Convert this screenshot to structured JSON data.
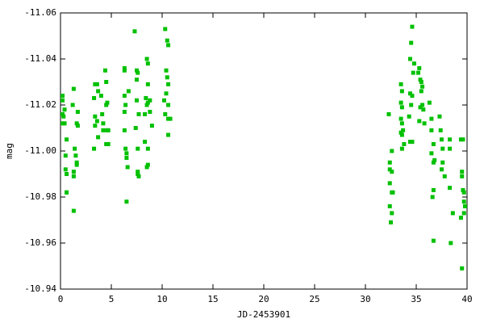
{
  "chart_data": {
    "type": "scatter",
    "x_label": "JD-2453901",
    "y_label": "mag",
    "color": "#00c000",
    "xlim": [
      0,
      40
    ],
    "xticks": [
      0,
      5,
      10,
      15,
      20,
      25,
      30,
      35,
      40
    ],
    "ylim": [
      -10.94,
      -11.06
    ],
    "yticks": [
      -10.94,
      -10.96,
      -10.98,
      {
        "value": -11,
        "label": "-11.00"
      },
      -11.02,
      -11.04,
      -11.06
    ],
    "x": [
      0.2,
      0.2,
      0.4,
      0.2,
      0.3,
      0.4,
      0.2,
      0.6,
      0.5,
      0.5,
      0.6,
      0.6,
      0.6,
      1.2,
      1.3,
      1.7,
      1.6,
      1.7,
      1.4,
      1.5,
      1.6,
      1.3,
      1.3,
      1.3,
      1.6,
      3.3,
      3.4,
      3.6,
      3.4,
      3.4,
      3.3,
      3.7,
      3.6,
      3.7,
      4.0,
      4.1,
      4.2,
      4.2,
      4.4,
      4.5,
      4.5,
      4.6,
      4.6,
      4.7,
      4.5,
      4.7,
      6.3,
      6.3,
      6.3,
      6.4,
      6.3,
      6.3,
      6.4,
      6.5,
      6.5,
      6.6,
      6.5,
      6.7,
      7.3,
      7.5,
      7.6,
      7.5,
      7.5,
      7.7,
      7.4,
      7.6,
      7.6,
      7.7,
      7.6,
      8.5,
      8.6,
      8.4,
      8.5,
      8.6,
      8.8,
      8.3,
      8.8,
      9.0,
      8.3,
      8.6,
      8.6,
      8.5,
      8.6,
      10.3,
      10.5,
      10.6,
      10.4,
      10.5,
      10.6,
      10.4,
      10.2,
      10.6,
      10.3,
      10.6,
      10.8,
      10.6,
      32.3,
      32.4,
      32.4,
      32.6,
      32.4,
      32.6,
      32.7,
      32.4,
      32.6,
      32.5,
      32.6,
      33.5,
      33.6,
      33.5,
      33.6,
      33.5,
      33.6,
      33.7,
      33.6,
      33.8,
      33.6,
      33.5,
      34.4,
      34.5,
      34.6,
      34.4,
      34.5,
      34.7,
      34.8,
      34.4,
      34.6,
      34.3,
      34.6,
      35.2,
      35.3,
      35.4,
      35.5,
      35.6,
      35.5,
      35.4,
      35.7,
      35.3,
      35.8,
      35.6,
      36.3,
      36.5,
      36.5,
      36.7,
      36.5,
      36.7,
      36.6,
      36.7,
      36.8,
      36.7,
      37.3,
      37.4,
      37.5,
      37.6,
      37.6,
      37.8,
      37.5,
      38.3,
      38.3,
      38.3,
      38.6,
      38.4,
      39.4,
      39.6,
      39.5,
      39.5,
      39.6,
      39.7,
      39.7,
      39.8,
      39.4,
      39.7,
      39.5
    ],
    "values": [
      -11.024,
      -11.022,
      -11.018,
      -11.016,
      -11.015,
      -11.012,
      -11.012,
      -11.005,
      -10.998,
      -10.992,
      -10.99,
      -10.982,
      -10.982,
      -11.02,
      -11.027,
      -11.017,
      -11.012,
      -11.011,
      -11.001,
      -10.998,
      -10.995,
      -10.991,
      -10.989,
      -10.974,
      -10.994,
      -11.023,
      -11.029,
      -11.029,
      -11.015,
      -11.011,
      -11.001,
      -11.026,
      -11.013,
      -11.006,
      -11.024,
      -11.016,
      -11.012,
      -11.009,
      -11.035,
      -11.03,
      -11.02,
      -11.021,
      -11.009,
      -11.009,
      -11.003,
      -11.003,
      -11.036,
      -11.035,
      -11.024,
      -11.02,
      -11.017,
      -11.009,
      -11.001,
      -10.999,
      -10.997,
      -10.993,
      -10.978,
      -11.026,
      -11.052,
      -11.035,
      -11.034,
      -11.031,
      -11.022,
      -11.016,
      -11.01,
      -11.001,
      -10.991,
      -10.989,
      -10.99,
      -11.04,
      -11.038,
      -11.023,
      -11.02,
      -11.021,
      -11.022,
      -11.016,
      -11.017,
      -11.011,
      -11.004,
      -11.001,
      -10.994,
      -10.993,
      -11.029,
      -11.053,
      -11.048,
      -11.046,
      -11.035,
      -11.032,
      -11.029,
      -11.025,
      -11.022,
      -11.02,
      -11.016,
      -11.014,
      -11.014,
      -11.007,
      -11.016,
      -10.995,
      -10.992,
      -10.991,
      -10.986,
      -10.982,
      -10.982,
      -10.976,
      -10.973,
      -10.969,
      -11,
      -11.029,
      -11.026,
      -11.021,
      -11.019,
      -11.014,
      -11.012,
      -11.009,
      -11.007,
      -11.003,
      -11.001,
      -11.008,
      -11.04,
      -11.047,
      -11.054,
      -11.025,
      -11.02,
      -11.034,
      -11.038,
      -11.004,
      -11.004,
      -11.015,
      -11.024,
      -11.034,
      -11.036,
      -11.031,
      -11.03,
      -11.028,
      -11.026,
      -11.019,
      -11.018,
      -11.013,
      -11.012,
      -11.02,
      -11.021,
      -11.014,
      -11.009,
      -11.003,
      -10.999,
      -10.983,
      -10.98,
      -10.961,
      -10.996,
      -10.995,
      -11.015,
      -11.009,
      -11.005,
      -11.001,
      -10.995,
      -10.989,
      -10.992,
      -11.005,
      -11.001,
      -10.984,
      -10.973,
      -10.96,
      -11.005,
      -11.005,
      -10.991,
      -10.989,
      -10.983,
      -10.982,
      -10.978,
      -10.976,
      -10.971,
      -10.973,
      -10.949
    ]
  }
}
